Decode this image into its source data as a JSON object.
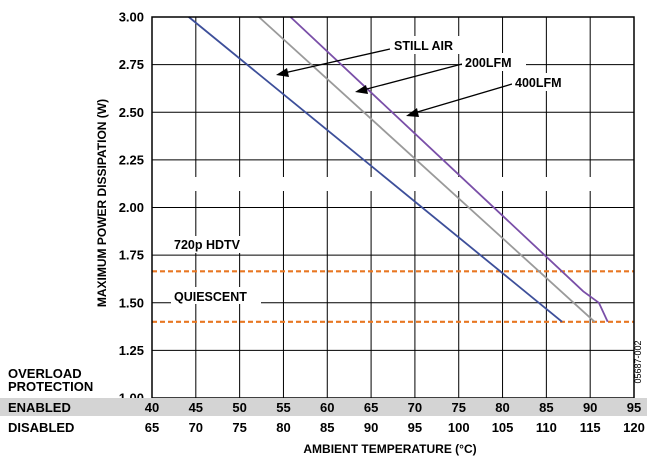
{
  "chart_data": {
    "type": "line",
    "ylabel": "MAXIMUM POWER DISSIPATION (W)",
    "xlabel": "AMBIENT TEMPERATURE (°C)",
    "ylim": [
      1.0,
      3.0
    ],
    "yticks": [
      "1.00",
      "1.25",
      "1.50",
      "1.75",
      "2.00",
      "2.25",
      "2.50",
      "2.75",
      "3.00"
    ],
    "xlim": [
      40,
      95
    ],
    "grid": true,
    "x_rows": [
      {
        "label": "ENABLED",
        "ticks": [
          "40",
          "45",
          "50",
          "55",
          "60",
          "65",
          "70",
          "75",
          "80",
          "85",
          "90",
          "95"
        ]
      },
      {
        "label": "DISABLED",
        "ticks": [
          "65",
          "70",
          "75",
          "80",
          "85",
          "90",
          "95",
          "100",
          "105",
          "110",
          "115",
          "120"
        ]
      }
    ],
    "row_header": [
      "OVERLOAD",
      "PROTECTION"
    ],
    "series": [
      {
        "name": "STILL AIR",
        "color": "#3d4f9a",
        "points": [
          [
            44.2,
            3.0
          ],
          [
            86.8,
            1.4
          ]
        ]
      },
      {
        "name": "200LFM",
        "color": "#9a9a9a",
        "points": [
          [
            52.2,
            3.0
          ],
          [
            90.5,
            1.4
          ]
        ]
      },
      {
        "name": "400LFM",
        "color": "#7a4fa8",
        "points": [
          [
            55.8,
            3.0
          ],
          [
            89.2,
            1.56
          ],
          [
            91.0,
            1.5
          ],
          [
            92.0,
            1.4
          ]
        ]
      }
    ],
    "reference_lines": [
      {
        "label": "720p HDTV",
        "y": 1.665,
        "color": "#e87722"
      },
      {
        "label": "QUIESCENT",
        "y": 1.4,
        "color": "#e87722"
      }
    ],
    "figure_code": "05687-002"
  }
}
